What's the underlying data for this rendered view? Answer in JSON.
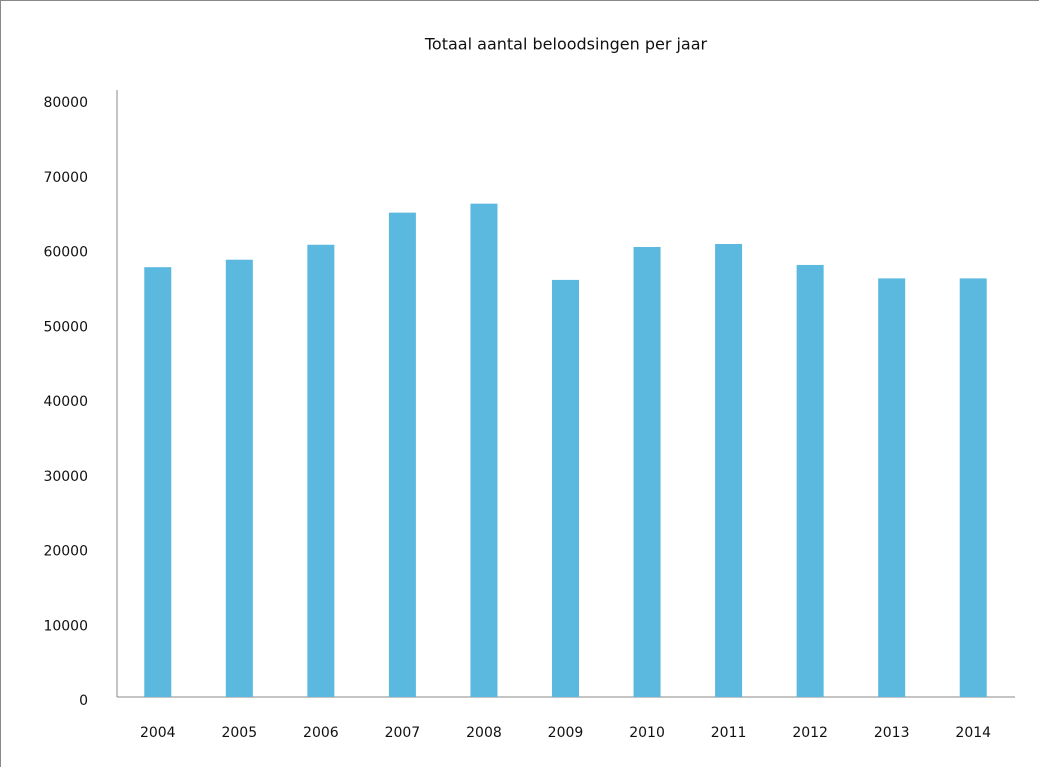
{
  "chart_data": {
    "type": "bar",
    "title": "Totaal aantal beloodsingen per jaar",
    "categories": [
      "2004",
      "2005",
      "2006",
      "2007",
      "2008",
      "2009",
      "2010",
      "2011",
      "2012",
      "2013",
      "2014"
    ],
    "values": [
      57500,
      58500,
      60500,
      64800,
      66000,
      55800,
      60200,
      60600,
      57800,
      56000,
      56000
    ],
    "color": "#5bb8de",
    "ylim": [
      0,
      80000
    ],
    "yticks": [
      0,
      10000,
      20000,
      30000,
      40000,
      50000,
      60000,
      70000,
      80000
    ],
    "grid": false
  }
}
